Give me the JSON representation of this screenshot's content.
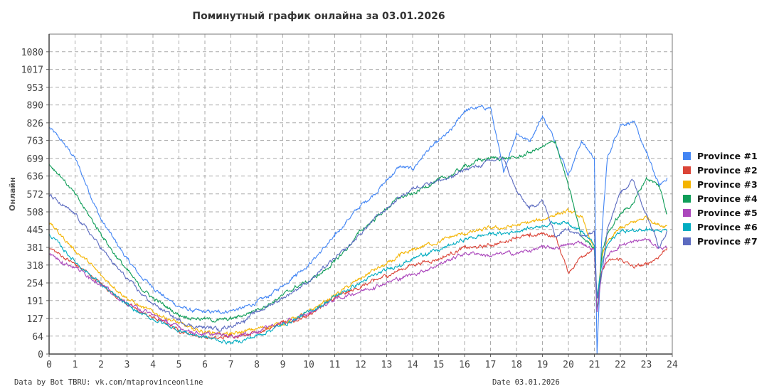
{
  "chart_data": {
    "type": "line",
    "title": "Поминутный график онлайна за 03.01.2026",
    "xlabel": "",
    "ylabel": "Онлайн",
    "xlim": [
      0,
      24
    ],
    "ylim": [
      0,
      1143
    ],
    "grid": true,
    "legend_position": "right",
    "x_ticks": [
      "0",
      "1",
      "2",
      "3",
      "4",
      "5",
      "6",
      "7",
      "8",
      "9",
      "10",
      "11",
      "12",
      "13",
      "14",
      "15",
      "16",
      "17",
      "18",
      "19",
      "20",
      "21",
      "22",
      "23",
      "24"
    ],
    "y_ticks": [
      "0",
      "64",
      "127",
      "191",
      "254",
      "318",
      "381",
      "445",
      "508",
      "572",
      "636",
      "699",
      "763",
      "826",
      "890",
      "953",
      "1017",
      "1080"
    ],
    "x": [
      0,
      0.5,
      1,
      1.5,
      2,
      2.5,
      3,
      3.5,
      4,
      4.5,
      5,
      5.5,
      6,
      6.5,
      7,
      7.5,
      8,
      8.5,
      9,
      9.5,
      10,
      10.5,
      11,
      11.5,
      12,
      12.5,
      13,
      13.5,
      14,
      14.5,
      15,
      15.5,
      16,
      16.5,
      17,
      17.5,
      18,
      18.5,
      19,
      19.5,
      20,
      20.5,
      21,
      21.1,
      21.3,
      21.5,
      22,
      22.5,
      23,
      23.5,
      23.8
    ],
    "series": [
      {
        "name": "Province #1",
        "color": "#4285f4",
        "values": [
          810,
          760,
          700,
          590,
          480,
          410,
          340,
          280,
          240,
          200,
          170,
          155,
          150,
          150,
          155,
          165,
          185,
          210,
          245,
          285,
          320,
          370,
          420,
          480,
          530,
          570,
          620,
          670,
          660,
          720,
          760,
          800,
          870,
          880,
          880,
          650,
          790,
          760,
          850,
          760,
          640,
          760,
          700,
          0,
          450,
          700,
          820,
          830,
          720,
          600,
          630
        ]
      },
      {
        "name": "Province #2",
        "color": "#db4437",
        "values": [
          380,
          350,
          320,
          290,
          250,
          215,
          180,
          150,
          130,
          110,
          85,
          70,
          60,
          55,
          65,
          70,
          80,
          90,
          110,
          120,
          140,
          170,
          200,
          220,
          240,
          260,
          280,
          300,
          320,
          330,
          340,
          360,
          380,
          380,
          390,
          400,
          420,
          420,
          430,
          420,
          290,
          350,
          380,
          200,
          300,
          330,
          340,
          310,
          320,
          350,
          380
        ]
      },
      {
        "name": "Province #3",
        "color": "#f4b400",
        "values": [
          470,
          420,
          370,
          330,
          280,
          240,
          200,
          170,
          150,
          130,
          110,
          90,
          80,
          75,
          70,
          80,
          90,
          100,
          110,
          130,
          150,
          180,
          210,
          240,
          270,
          300,
          320,
          350,
          370,
          390,
          400,
          420,
          430,
          440,
          450,
          450,
          460,
          470,
          480,
          500,
          510,
          490,
          370,
          200,
          350,
          400,
          450,
          470,
          490,
          460,
          460
        ]
      },
      {
        "name": "Province #4",
        "color": "#0f9d58",
        "values": [
          680,
          630,
          570,
          500,
          430,
          360,
          300,
          240,
          200,
          170,
          140,
          130,
          125,
          120,
          125,
          140,
          160,
          180,
          210,
          240,
          260,
          290,
          330,
          380,
          440,
          480,
          520,
          560,
          570,
          600,
          620,
          640,
          670,
          690,
          700,
          700,
          700,
          720,
          740,
          760,
          600,
          420,
          380,
          150,
          370,
          430,
          500,
          540,
          630,
          600,
          500
        ]
      },
      {
        "name": "Province #5",
        "color": "#ab47bc",
        "values": [
          360,
          330,
          310,
          280,
          250,
          210,
          180,
          160,
          140,
          115,
          95,
          80,
          70,
          70,
          65,
          70,
          80,
          100,
          110,
          125,
          145,
          170,
          195,
          210,
          225,
          240,
          255,
          270,
          285,
          300,
          320,
          340,
          360,
          360,
          350,
          360,
          360,
          370,
          380,
          380,
          390,
          400,
          370,
          150,
          300,
          350,
          390,
          400,
          410,
          380,
          380
        ]
      },
      {
        "name": "Province #6",
        "color": "#00acc1",
        "values": [
          430,
          380,
          330,
          290,
          250,
          210,
          175,
          145,
          125,
          105,
          85,
          70,
          60,
          50,
          40,
          50,
          65,
          85,
          105,
          125,
          150,
          175,
          205,
          230,
          255,
          280,
          300,
          320,
          340,
          360,
          370,
          390,
          410,
          420,
          430,
          430,
          440,
          450,
          460,
          470,
          470,
          440,
          390,
          200,
          330,
          390,
          440,
          440,
          450,
          440,
          440
        ]
      },
      {
        "name": "Province #7",
        "color": "#5c6bc0",
        "values": [
          570,
          530,
          500,
          440,
          380,
          320,
          270,
          220,
          180,
          150,
          120,
          100,
          95,
          90,
          100,
          120,
          150,
          175,
          200,
          230,
          260,
          300,
          340,
          380,
          430,
          480,
          520,
          560,
          590,
          610,
          620,
          630,
          660,
          670,
          690,
          700,
          580,
          520,
          550,
          420,
          450,
          420,
          440,
          200,
          300,
          450,
          580,
          620,
          500,
          380,
          440
        ]
      }
    ]
  },
  "footer": {
    "source": "Data by Bot TBRU: vk.com/mtaprovinceonline",
    "date": "Date 03.01.2026"
  }
}
